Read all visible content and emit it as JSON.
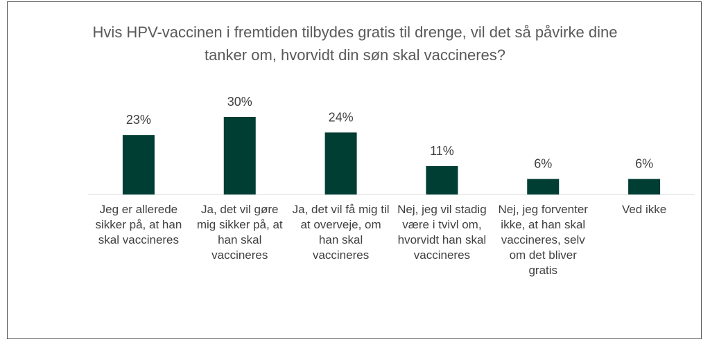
{
  "chart_data": {
    "type": "bar",
    "title": "Hvis HPV-vaccinen i fremtiden tilbydes gratis til drenge, vil det så påvirke dine tanker om, hvorvidt din søn skal vaccineres?",
    "categories": [
      "Jeg er allerede sikker på, at han skal vaccineres",
      "Ja, det vil gøre mig sikker på, at han skal vaccineres",
      "Ja, det vil få mig til at overveje, om han skal vaccineres",
      "Nej, jeg vil stadig være i tvivl om, hvorvidt han skal vaccineres",
      "Nej, jeg forventer ikke, at han skal vaccineres, selv om det bliver gratis",
      "Ved ikke"
    ],
    "values": [
      23,
      30,
      24,
      11,
      6,
      6
    ],
    "value_labels": [
      "23%",
      "30%",
      "24%",
      "11%",
      "6%",
      "6%"
    ],
    "color": "#003d33"
  }
}
